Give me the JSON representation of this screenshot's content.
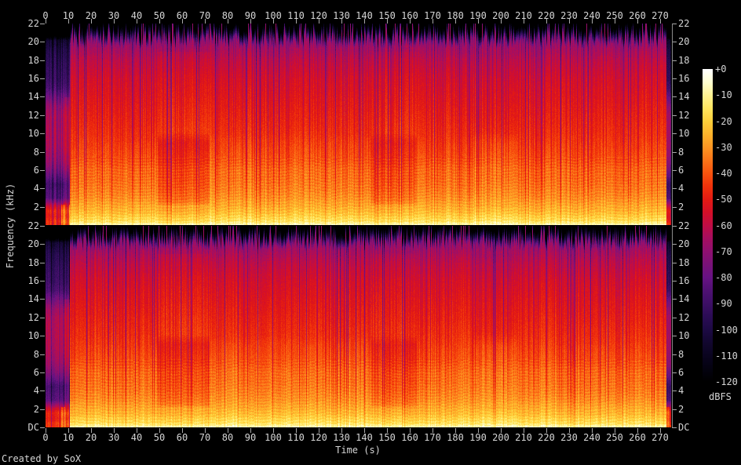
{
  "window": {
    "background": "#000000",
    "text_color": "#d6d6d6"
  },
  "footer": {
    "credit": "Created by SoX"
  },
  "chart_data": {
    "type": "heatmap",
    "subtype": "audio-spectrogram",
    "title": "",
    "xlabel": "Time (s)",
    "ylabel": "Frequency (kHz)",
    "x_ticks": [
      0,
      10,
      20,
      30,
      40,
      50,
      60,
      70,
      80,
      90,
      100,
      110,
      120,
      130,
      140,
      150,
      160,
      170,
      180,
      190,
      200,
      210,
      220,
      230,
      240,
      250,
      260,
      270
    ],
    "x_range_s": [
      0,
      274.8
    ],
    "y_range_khz": [
      0,
      22
    ],
    "y_tick_step_khz": 2,
    "y_tick_labels_top_panel": [
      "22",
      "20",
      "18",
      "16",
      "14",
      "12",
      "10",
      "8",
      "6",
      "4",
      "2"
    ],
    "y_tick_labels_bottom_panel": [
      "22",
      "20",
      "18",
      "16",
      "14",
      "12",
      "10",
      "8",
      "6",
      "4",
      "2",
      "DC"
    ],
    "grid": false,
    "panels": [
      {
        "name": "channel-1",
        "seed": 1337
      },
      {
        "name": "channel-2",
        "seed": 7331
      }
    ],
    "colorbar": {
      "unit": "dBFS",
      "position": "right",
      "range_db": [
        0,
        -120
      ],
      "tick_labels": [
        "+0",
        "-10",
        "-20",
        "-30",
        "-40",
        "-50",
        "-60",
        "-70",
        "-80",
        "-90",
        "-100",
        "-110",
        "-120"
      ],
      "stops": [
        [
          0,
          "#ffffff"
        ],
        [
          -5,
          "#ffffd0"
        ],
        [
          -10,
          "#fff291"
        ],
        [
          -15,
          "#ffe55e"
        ],
        [
          -20,
          "#fecf3a"
        ],
        [
          -25,
          "#feb32b"
        ],
        [
          -30,
          "#fd9522"
        ],
        [
          -35,
          "#fb7418"
        ],
        [
          -40,
          "#f8530e"
        ],
        [
          -45,
          "#f0320b"
        ],
        [
          -50,
          "#e31a13"
        ],
        [
          -55,
          "#d40f28"
        ],
        [
          -60,
          "#c00d45"
        ],
        [
          -65,
          "#a50e60"
        ],
        [
          -70,
          "#8f1070"
        ],
        [
          -75,
          "#791278"
        ],
        [
          -80,
          "#671284"
        ],
        [
          -85,
          "#4f1173"
        ],
        [
          -90,
          "#3d0f66"
        ],
        [
          -95,
          "#2b0c55"
        ],
        [
          -100,
          "#1d0a44"
        ],
        [
          -105,
          "#12072f"
        ],
        [
          -110,
          "#0a041f"
        ],
        [
          -115,
          "#040210"
        ],
        [
          -120,
          "#000000"
        ]
      ]
    },
    "spectral_profile_db": [
      [
        0,
        -6
      ],
      [
        0.2,
        -10
      ],
      [
        0.5,
        -16
      ],
      [
        1,
        -20
      ],
      [
        1.5,
        -24
      ],
      [
        2,
        -26
      ],
      [
        3,
        -31
      ],
      [
        4,
        -34
      ],
      [
        5,
        -36
      ],
      [
        6,
        -37
      ],
      [
        7,
        -40
      ],
      [
        8,
        -42
      ],
      [
        10,
        -46
      ],
      [
        12,
        -49
      ],
      [
        14,
        -52
      ],
      [
        16,
        -55
      ],
      [
        18,
        -60
      ],
      [
        19,
        -64
      ],
      [
        20,
        -68
      ],
      [
        21,
        -71
      ],
      [
        22,
        -74
      ]
    ],
    "intro_profile_db": [
      [
        0,
        -48
      ],
      [
        0.4,
        -44
      ],
      [
        1,
        -50
      ],
      [
        1.6,
        -47
      ],
      [
        2.2,
        -58
      ],
      [
        3,
        -82
      ],
      [
        4.5,
        -87
      ],
      [
        6,
        -73
      ],
      [
        7,
        -67
      ],
      [
        8.5,
        -63
      ],
      [
        10,
        -62
      ],
      [
        12,
        -63
      ],
      [
        13,
        -67
      ],
      [
        14,
        -76
      ],
      [
        15,
        -86
      ],
      [
        16,
        -90
      ],
      [
        17.5,
        -93
      ],
      [
        19,
        -97
      ],
      [
        20,
        -103
      ],
      [
        21,
        -110
      ],
      [
        22,
        -115
      ]
    ],
    "sections": [
      {
        "t0": 0,
        "t1": 10.6,
        "type": "intro"
      },
      {
        "t0": 10.6,
        "t1": 49,
        "mid_db": 0,
        "low_db": 0,
        "hi_db": 0
      },
      {
        "t0": 49,
        "t1": 72,
        "mid_db": -6,
        "low_db": -2,
        "hi_db": 2
      },
      {
        "t0": 72,
        "t1": 143,
        "mid_db": 1,
        "low_db": 1,
        "hi_db": 0
      },
      {
        "t0": 143,
        "t1": 163,
        "mid_db": -5,
        "low_db": -1,
        "hi_db": 1
      },
      {
        "t0": 163,
        "t1": 188,
        "mid_db": 0,
        "low_db": 0,
        "hi_db": 0
      },
      {
        "t0": 188,
        "t1": 207,
        "mid_db": 2,
        "low_db": 2,
        "hi_db": -1
      },
      {
        "t0": 207,
        "t1": 272.5,
        "mid_db": 0,
        "low_db": 0,
        "hi_db": 0
      },
      {
        "t0": 272.5,
        "t1": 274.8,
        "type": "outro"
      }
    ]
  }
}
